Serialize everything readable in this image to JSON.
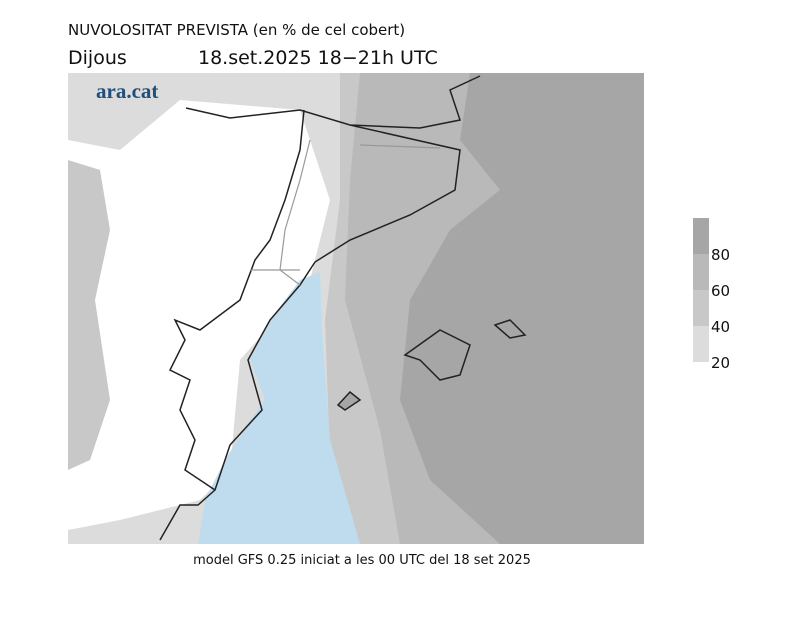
{
  "header": {
    "title": "NUVOLOSITAT PREVISTA (en % de cel cobert)",
    "day": "Dijous",
    "period": "18.set.2025 18−21h UTC"
  },
  "logo": "ara.cat",
  "legend": {
    "ticks": [
      20,
      40,
      60,
      80
    ],
    "colors": [
      "#dcdcdc",
      "#c8c8c8",
      "#b9b9b9",
      "#a6a6a6"
    ]
  },
  "footer": "model GFS 0.25 iniciat a les 00 UTC del 18 set 2025"
}
